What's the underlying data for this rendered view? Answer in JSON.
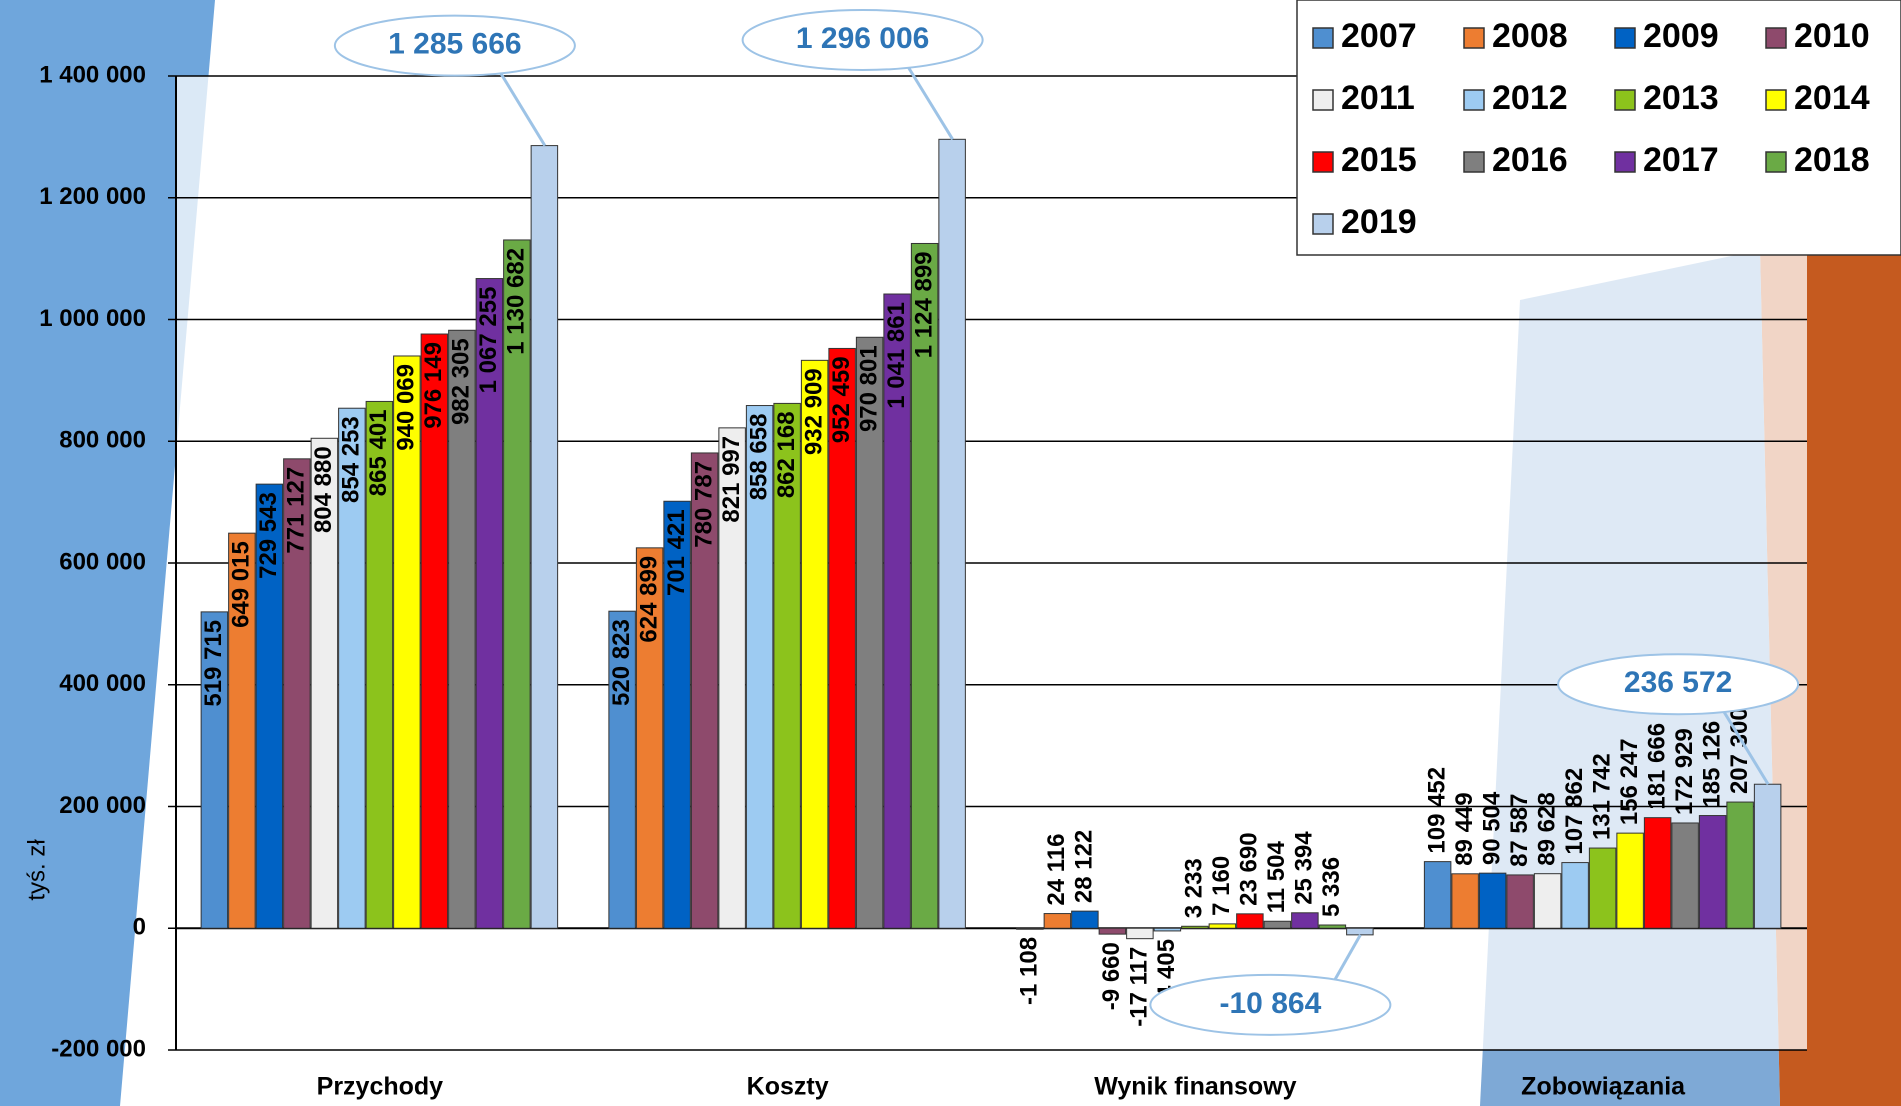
{
  "chart_data": {
    "type": "bar",
    "ylabel": "tyś. zł",
    "categories": [
      "Przychody",
      "Koszty",
      "Wynik finansowy",
      "Zobowiązania"
    ],
    "ylim": [
      -200000,
      1400000
    ],
    "yticks": [
      {
        "value": -200000,
        "label": "-200 000"
      },
      0,
      {
        "value": 200000,
        "label": "200 000"
      },
      {
        "value": 400000,
        "label": "400 000"
      },
      {
        "value": 600000,
        "label": "600 000"
      },
      {
        "value": 800000,
        "label": "800 000"
      },
      {
        "value": 1000000,
        "label": "1 000 000"
      },
      {
        "value": 1200000,
        "label": "1 200 000"
      },
      {
        "value": 1400000,
        "label": "1 400 000"
      }
    ],
    "grid": true,
    "legend": "top-right",
    "series": [
      {
        "name": "2007",
        "color": "#4f8fd0",
        "values": [
          519715,
          520823,
          -1108,
          109452
        ],
        "value_labels": [
          "519 715",
          "520 823",
          "-1 108",
          "109 452"
        ]
      },
      {
        "name": "2008",
        "color": "#ed7d31",
        "values": [
          649015,
          624899,
          24116,
          89449
        ],
        "value_labels": [
          "649 015",
          "624 899",
          "24 116",
          "89 449"
        ]
      },
      {
        "name": "2009",
        "color": "#0062c4",
        "values": [
          729543,
          701421,
          28122,
          90504
        ],
        "value_labels": [
          "729 543",
          "701 421",
          "28 122",
          "90 504"
        ]
      },
      {
        "name": "2010",
        "color": "#8e4a6c",
        "values": [
          771127,
          780787,
          -9660,
          87587
        ],
        "value_labels": [
          "771 127",
          "780 787",
          "-9 660",
          "87 587"
        ]
      },
      {
        "name": "2011",
        "color": "#eeeeee",
        "values": [
          804880,
          821997,
          -17117,
          89628
        ],
        "value_labels": [
          "804 880",
          "821 997",
          "-17 117",
          "89 628"
        ]
      },
      {
        "name": "2012",
        "color": "#9dcbf2",
        "values": [
          854253,
          858658,
          -4405,
          107862
        ],
        "value_labels": [
          "854 253",
          "858 658",
          "-4 405",
          "107 862"
        ]
      },
      {
        "name": "2013",
        "color": "#8cc31c",
        "values": [
          865401,
          862168,
          3233,
          131742
        ],
        "value_labels": [
          "865 401",
          "862 168",
          "3 233",
          "131 742"
        ]
      },
      {
        "name": "2014",
        "color": "#ffff00",
        "values": [
          940069,
          932909,
          7160,
          156247
        ],
        "value_labels": [
          "940 069",
          "932 909",
          "7 160",
          "156 247"
        ]
      },
      {
        "name": "2015",
        "color": "#ff0000",
        "values": [
          976149,
          952459,
          23690,
          181666
        ],
        "value_labels": [
          "976 149",
          "952 459",
          "23 690",
          "181 666"
        ]
      },
      {
        "name": "2016",
        "color": "#7f7f7f",
        "values": [
          982305,
          970801,
          11504,
          172929
        ],
        "value_labels": [
          "982 305",
          "970 801",
          "11 504",
          "172 929"
        ]
      },
      {
        "name": "2017",
        "color": "#7030a0",
        "values": [
          1067255,
          1041861,
          25394,
          185126
        ],
        "value_labels": [
          "1 067 255",
          "1 041 861",
          "25 394",
          "185 126"
        ]
      },
      {
        "name": "2018",
        "color": "#6aaa45",
        "values": [
          1130682,
          1124899,
          5336,
          207300
        ],
        "value_labels": [
          "1 130 682",
          "1 124 899",
          "5 336",
          "207 300"
        ]
      },
      {
        "name": "2019",
        "color": "#b8d0ec",
        "values": [
          1285666,
          1296006,
          -10864,
          236572
        ],
        "value_labels": [
          "1 285 666",
          "1 296 006",
          "-10 864",
          "236 572"
        ]
      }
    ]
  }
}
